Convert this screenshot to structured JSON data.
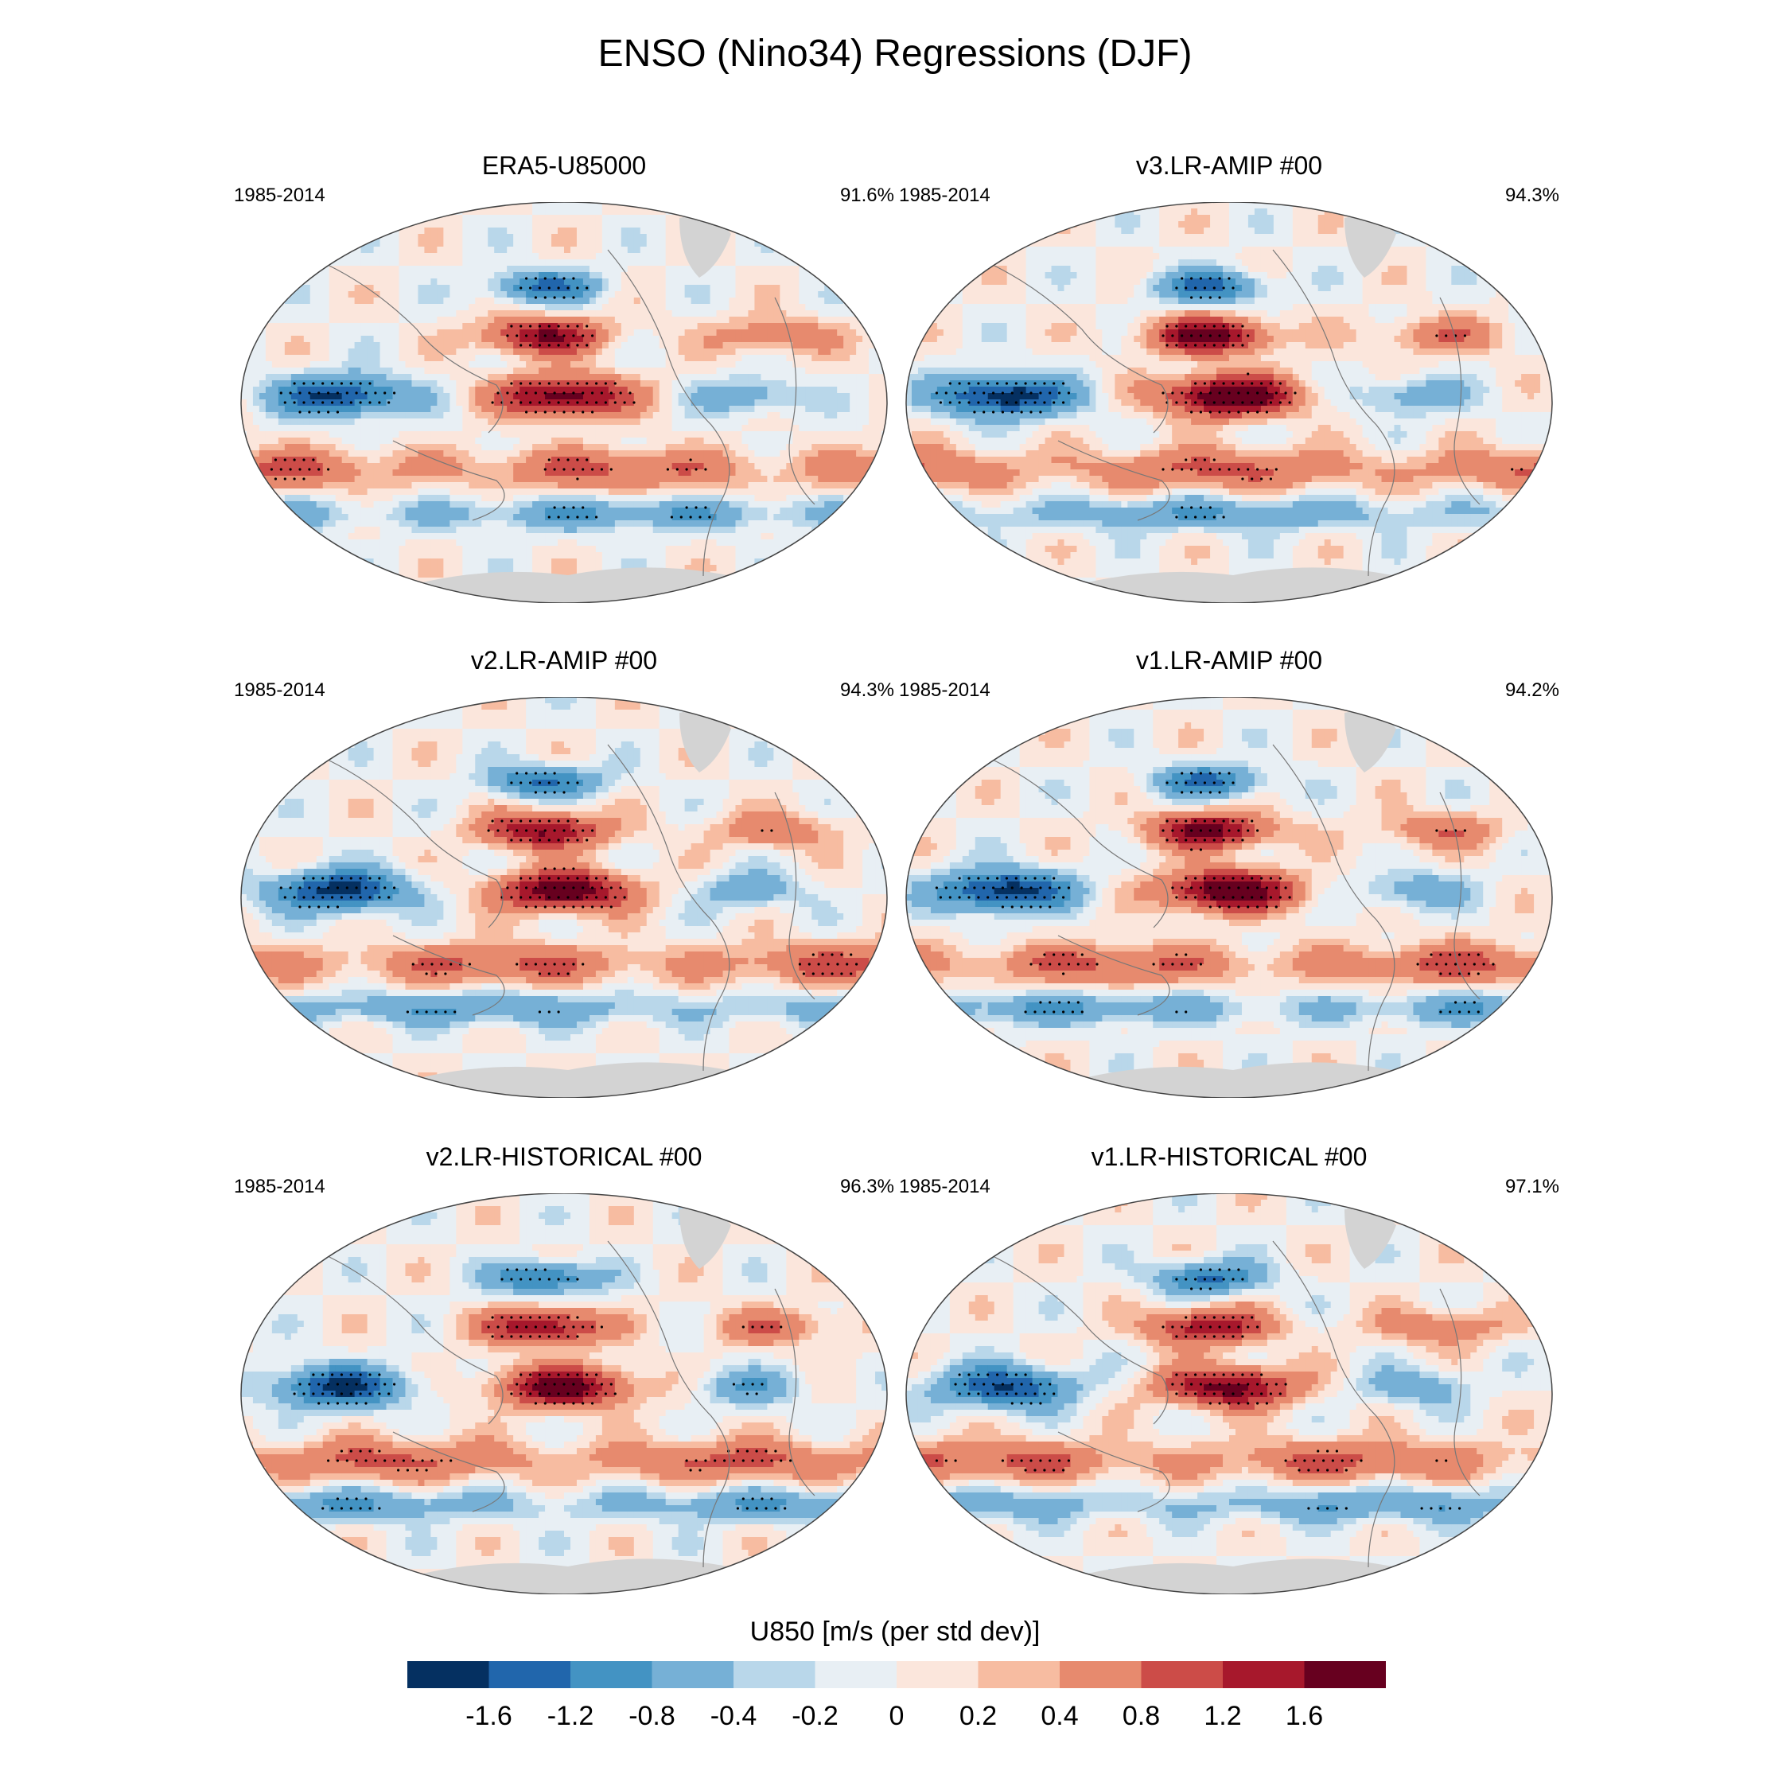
{
  "figure_title": "ENSO (Nino34) Regressions (DJF)",
  "chart_data": {
    "type": "heatmap",
    "variable": "U850",
    "panels": [
      {
        "title": "ERA5-U85000",
        "period": "1985-2014",
        "pct": "91.6%",
        "amp": 1.0,
        "seed": 1
      },
      {
        "title": "v3.LR-AMIP  #00",
        "period": "1985-2014",
        "pct": "94.3%",
        "amp": 1.15,
        "seed": 2
      },
      {
        "title": "v2.LR-AMIP  #00",
        "period": "1985-2014",
        "pct": "94.3%",
        "amp": 1.05,
        "seed": 3
      },
      {
        "title": "v1.LR-AMIP  #00",
        "period": "1985-2014",
        "pct": "94.2%",
        "amp": 1.1,
        "seed": 4
      },
      {
        "title": "v2.LR-HISTORICAL  #00",
        "period": "1985-2014",
        "pct": "96.3%",
        "amp": 1.0,
        "seed": 5
      },
      {
        "title": "v1.LR-HISTORICAL  #00",
        "period": "1985-2014",
        "pct": "97.1%",
        "amp": 0.95,
        "seed": 6
      }
    ],
    "colorbar": {
      "label": "U850 [m/s (per std dev)]",
      "levels": [
        -1.6,
        -1.2,
        -0.8,
        -0.4,
        -0.2,
        0,
        0.2,
        0.4,
        0.8,
        1.2,
        1.6
      ],
      "tick_labels": [
        "-1.6",
        "-1.2",
        "-0.8",
        "-0.4",
        "-0.2",
        "0",
        "0.2",
        "0.4",
        "0.8",
        "1.2",
        "1.6"
      ],
      "colors": [
        "#053061",
        "#2166ac",
        "#4393c3",
        "#76b0d6",
        "#b9d7ea",
        "#e8eff4",
        "#fbe6dc",
        "#f7bca1",
        "#e78a6e",
        "#cc4c48",
        "#a7182c",
        "#67001f"
      ]
    }
  }
}
